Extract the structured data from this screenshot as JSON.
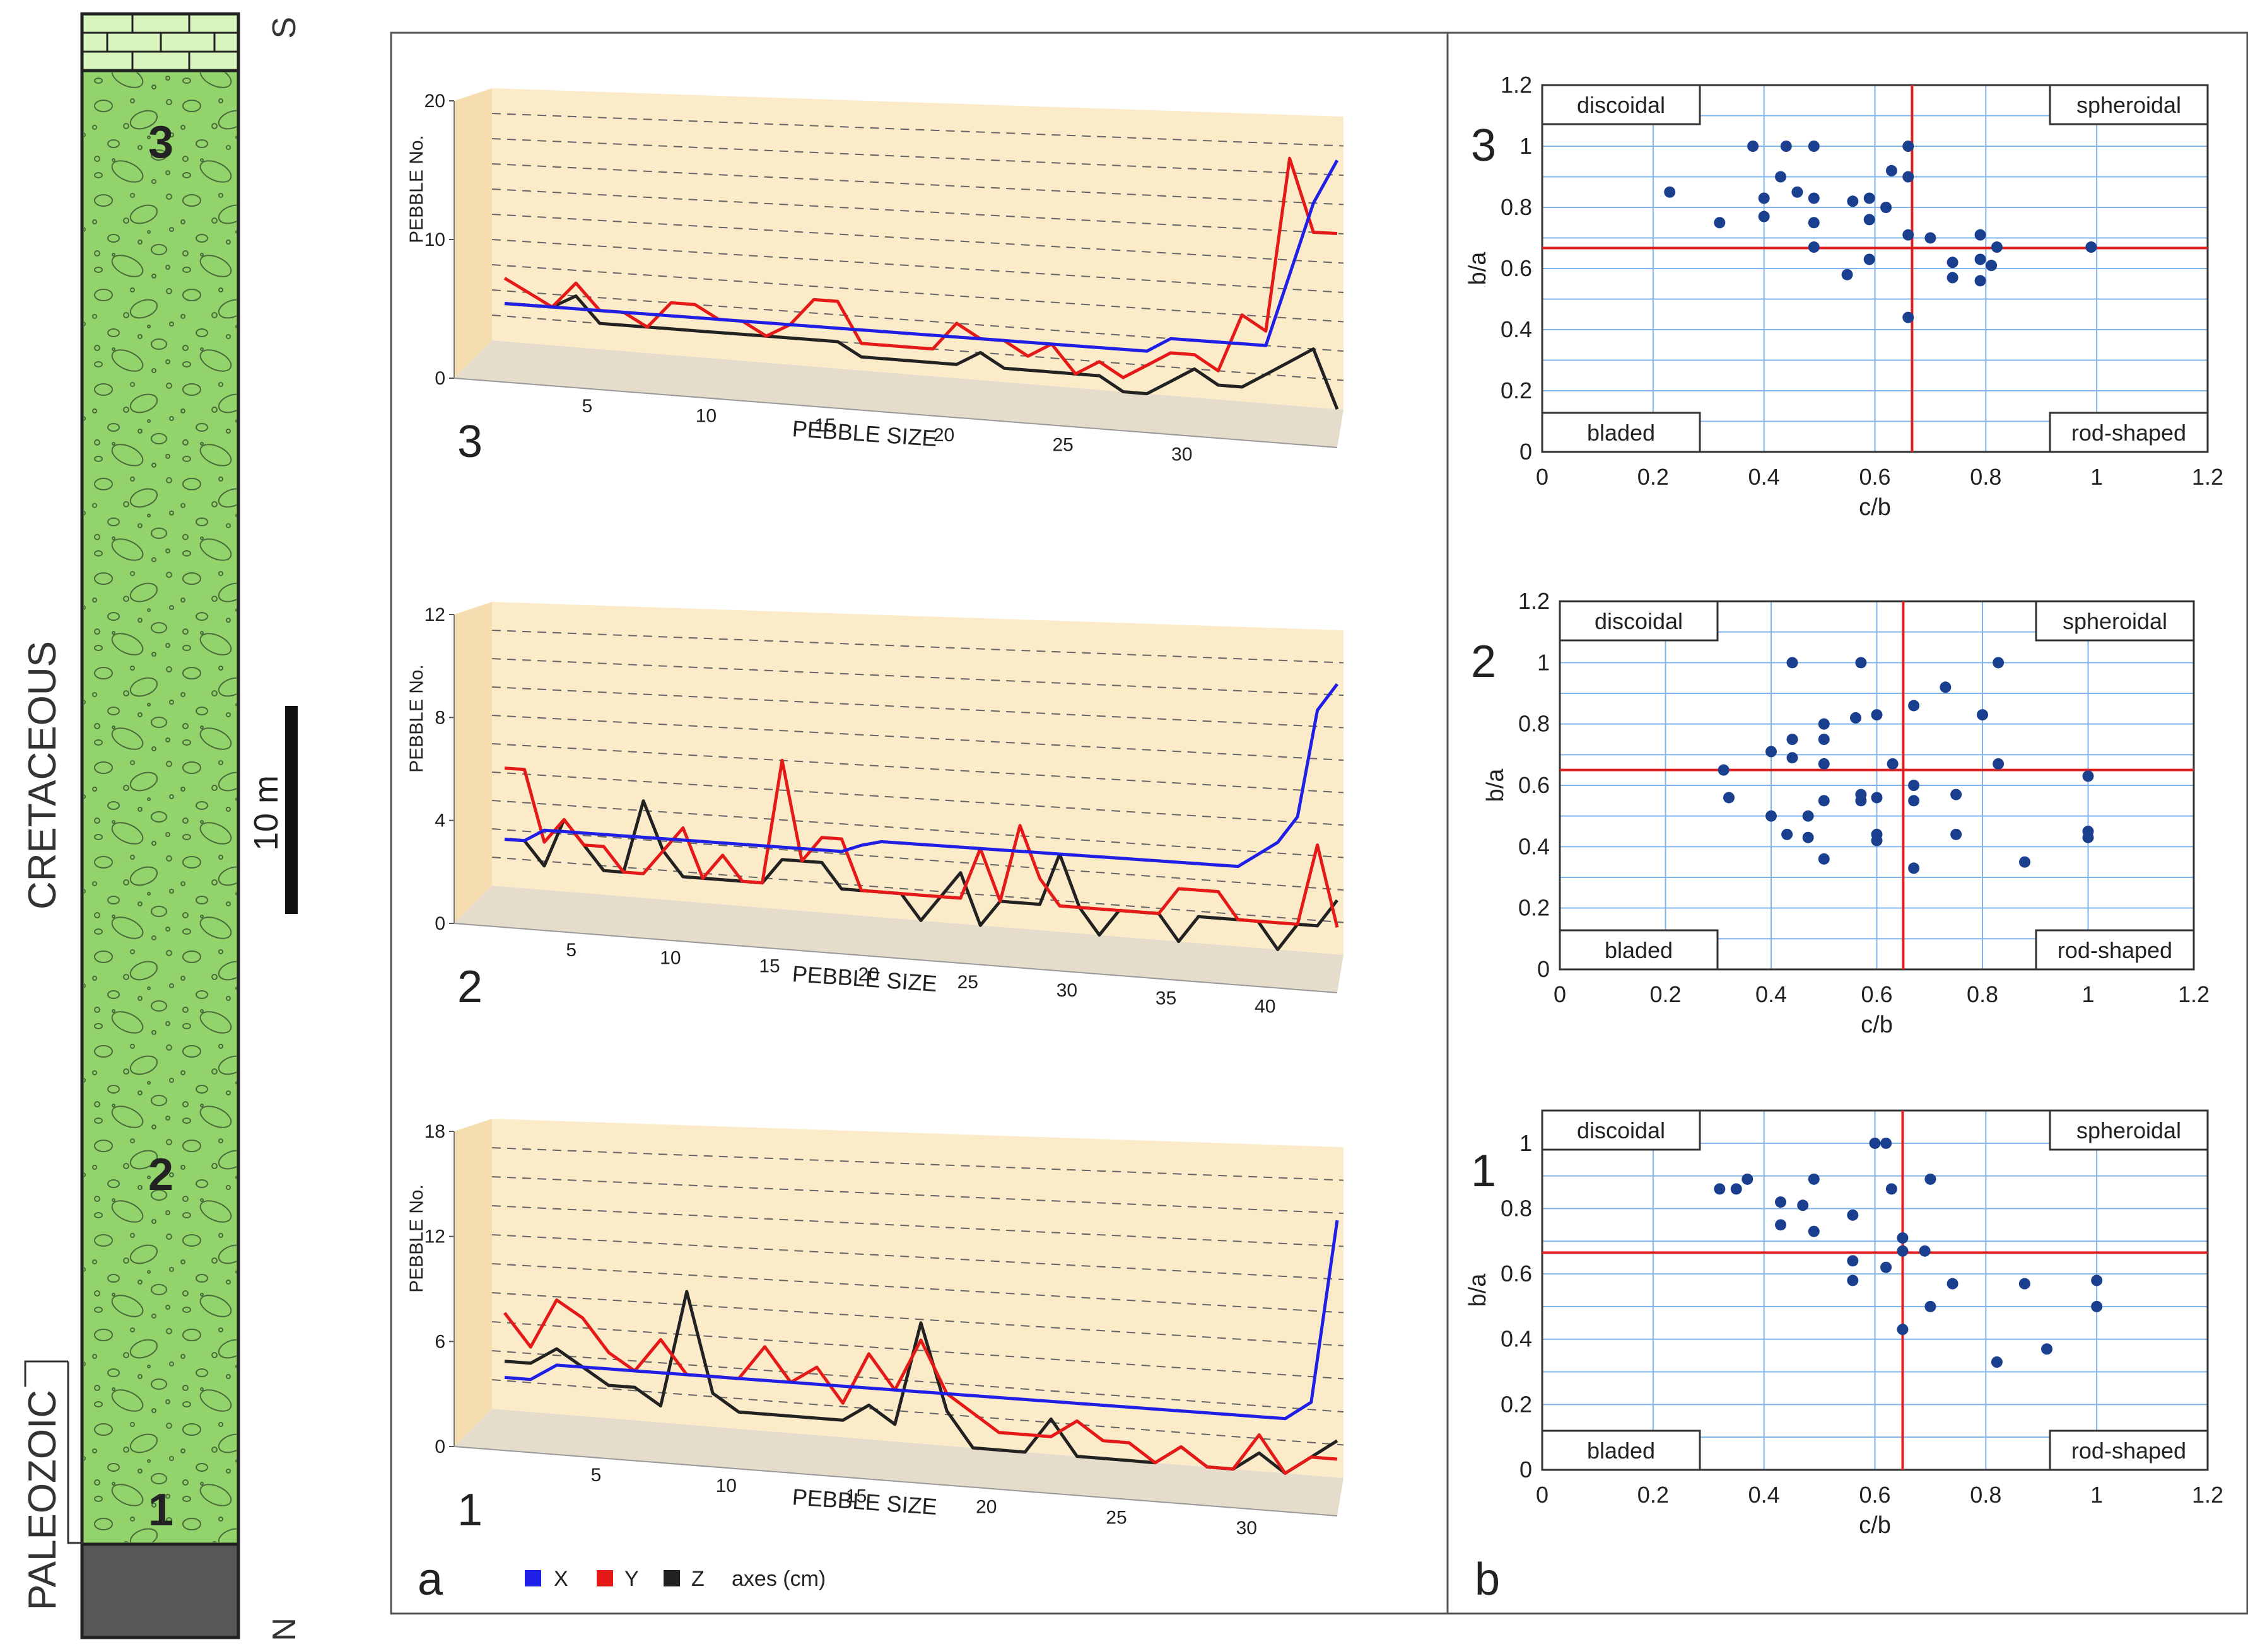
{
  "colors": {
    "x_axis": "#1f1fe6",
    "y_axis": "#e61919",
    "z_axis": "#222222",
    "column_green": "#93d36b",
    "cap_green": "#d8f5bd",
    "basement": "#575757",
    "panel_wall": "#fcebc9",
    "panel_floor": "#e6dccb",
    "scatter_dot": "#1b3f8f",
    "scatter_grid": "#7fb4ea",
    "scatter_cross": "#e02020"
  },
  "column": {
    "period": "CRETACEOUS",
    "basement": "PALEOZOIC",
    "north": "N",
    "south": "S",
    "scale_label": "10 m",
    "units": [
      "1",
      "2",
      "3"
    ]
  },
  "panel_a": {
    "label": "a",
    "legend": {
      "x": "X",
      "y": "Y",
      "z": "Z",
      "units": "axes (cm)"
    }
  },
  "panel_b": {
    "label": "b"
  },
  "chart_data": [
    {
      "id": "line-3",
      "type": "line",
      "number": "3",
      "xlabel": "PEBBLE SIZE",
      "ylabel": "PEBBLE No.",
      "ylim": [
        0,
        20
      ],
      "yticks": [
        0,
        10,
        20
      ],
      "xticks": [
        5,
        10,
        15,
        20,
        25,
        30
      ],
      "series": [
        {
          "name": "X",
          "values": [
            3,
            3,
            3,
            3,
            3,
            3,
            3,
            3,
            3,
            3,
            3,
            3,
            3,
            3,
            3,
            3,
            3,
            3,
            3,
            3,
            3,
            3,
            3,
            3,
            3,
            3,
            3,
            3,
            4,
            4,
            4,
            4,
            4,
            9,
            14,
            17
          ]
        },
        {
          "name": "Y",
          "values": [
            5,
            4,
            3,
            5,
            3,
            3,
            2,
            4,
            4,
            3,
            3,
            2,
            3,
            5,
            5,
            2,
            2,
            2,
            2,
            4,
            3,
            3,
            2,
            3,
            1,
            2,
            1,
            2,
            3,
            3,
            2,
            6,
            5,
            17,
            12,
            12
          ]
        },
        {
          "name": "Z",
          "values": [
            3,
            3,
            3,
            4,
            2,
            2,
            2,
            2,
            2,
            2,
            2,
            2,
            2,
            2,
            2,
            1,
            1,
            1,
            1,
            1,
            2,
            1,
            1,
            1,
            1,
            1,
            0,
            0,
            1,
            2,
            1,
            1,
            2,
            3,
            4,
            0
          ]
        }
      ]
    },
    {
      "id": "line-2",
      "type": "line",
      "number": "2",
      "xlabel": "PEBBLE SIZE",
      "ylabel": "PEBBLE No.",
      "ylim": [
        0,
        12
      ],
      "yticks": [
        0,
        4,
        8,
        12
      ],
      "xticks": [
        5,
        10,
        15,
        20,
        25,
        30,
        35,
        40
      ],
      "series": [
        {
          "name": "X",
          "values": [
            2,
            2,
            2.5,
            2.5,
            2.5,
            2.5,
            2.5,
            2.5,
            2.5,
            2.5,
            2.5,
            2.5,
            2.5,
            2.5,
            2.5,
            2.5,
            2.5,
            2.5,
            2.8,
            3,
            3,
            3,
            3,
            3,
            3,
            3,
            3,
            3,
            3,
            3,
            3,
            3,
            3,
            3,
            3,
            3,
            3,
            3,
            3.5,
            4,
            5,
            9,
            10
          ]
        },
        {
          "name": "Y",
          "values": [
            5,
            5,
            2,
            3,
            2,
            2,
            1,
            1,
            2,
            3,
            1,
            2,
            1,
            1,
            6,
            2,
            3,
            3,
            1,
            1,
            1,
            1,
            1,
            1,
            3,
            1,
            4,
            2,
            1,
            1,
            1,
            1,
            1,
            1,
            2,
            2,
            2,
            1,
            1,
            1,
            1,
            4,
            1
          ]
        },
        {
          "name": "Z",
          "values": [
            2,
            2,
            1,
            3,
            2,
            1,
            1,
            4,
            2,
            1,
            1,
            1,
            1,
            1,
            2,
            2,
            2,
            1,
            1,
            1,
            1,
            0,
            1,
            2,
            0,
            1,
            1,
            1,
            3,
            1,
            0,
            1,
            1,
            1,
            0,
            1,
            1,
            1,
            1,
            0,
            1,
            1,
            2
          ]
        }
      ]
    },
    {
      "id": "line-1",
      "type": "line",
      "number": "1",
      "xlabel": "PEBBLE SIZE",
      "ylabel": "PEBBLE No.",
      "ylim": [
        0,
        18
      ],
      "yticks": [
        0,
        6,
        12,
        18
      ],
      "xticks": [
        5,
        10,
        15,
        20,
        25,
        30
      ],
      "series": [
        {
          "name": "X",
          "values": [
            2,
            2,
            3,
            3,
            3,
            3,
            3,
            3,
            3,
            3,
            3,
            3,
            3,
            3,
            3,
            3,
            3,
            3,
            3,
            3,
            3,
            3,
            3,
            3,
            3,
            3,
            3,
            3,
            3,
            3,
            3,
            4,
            14
          ]
        },
        {
          "name": "Y",
          "values": [
            6,
            4,
            7,
            6,
            4,
            3,
            5,
            3,
            3,
            3,
            5,
            3,
            4,
            2,
            5,
            3,
            6,
            3,
            2,
            1,
            1,
            1,
            2,
            1,
            1,
            0,
            1,
            0,
            0,
            2,
            0,
            1,
            1
          ]
        },
        {
          "name": "Z",
          "values": [
            3,
            3,
            4,
            3,
            2,
            2,
            1,
            8,
            2,
            1,
            1,
            1,
            1,
            1,
            2,
            1,
            7,
            2,
            0,
            0,
            0,
            2,
            0,
            0,
            0,
            0,
            1,
            0,
            0,
            1,
            0,
            1,
            2
          ]
        }
      ]
    },
    {
      "id": "shape-3",
      "type": "scatter",
      "number": "3",
      "xlabel": "c/b",
      "ylabel": "b/a",
      "xlim": [
        0,
        1.2
      ],
      "ylim": [
        0,
        1.2
      ],
      "xticks": [
        "0",
        "0.2",
        "0.4",
        "0.6",
        "0.8",
        "1",
        "1.2"
      ],
      "yticks": [
        "0",
        "0.2",
        "0.4",
        "0.6",
        "0.8",
        "1",
        "1.2"
      ],
      "cross": [
        0.667,
        0.667
      ],
      "fields": [
        "discoidal",
        "spheroidal",
        "bladed",
        "rod-shaped"
      ],
      "points": [
        [
          0.23,
          0.85
        ],
        [
          0.32,
          0.75
        ],
        [
          0.38,
          1.0
        ],
        [
          0.4,
          0.83
        ],
        [
          0.4,
          0.77
        ],
        [
          0.43,
          0.9
        ],
        [
          0.44,
          1.0
        ],
        [
          0.46,
          0.85
        ],
        [
          0.49,
          1.0
        ],
        [
          0.49,
          0.83
        ],
        [
          0.49,
          0.75
        ],
        [
          0.49,
          0.67
        ],
        [
          0.55,
          0.58
        ],
        [
          0.56,
          0.82
        ],
        [
          0.59,
          0.76
        ],
        [
          0.59,
          0.83
        ],
        [
          0.59,
          0.63
        ],
        [
          0.62,
          0.8
        ],
        [
          0.63,
          0.92
        ],
        [
          0.66,
          1.0
        ],
        [
          0.66,
          0.9
        ],
        [
          0.66,
          0.71
        ],
        [
          0.66,
          0.44
        ],
        [
          0.7,
          0.7
        ],
        [
          0.74,
          0.62
        ],
        [
          0.74,
          0.57
        ],
        [
          0.79,
          0.71
        ],
        [
          0.79,
          0.63
        ],
        [
          0.79,
          0.56
        ],
        [
          0.81,
          0.61
        ],
        [
          0.82,
          0.67
        ],
        [
          0.99,
          0.67
        ]
      ]
    },
    {
      "id": "shape-2",
      "type": "scatter",
      "number": "2",
      "xlabel": "c/b",
      "ylabel": "b/a",
      "xlim": [
        0,
        1.2
      ],
      "ylim": [
        0,
        1.2
      ],
      "xticks": [
        "0",
        "0.2",
        "0.4",
        "0.6",
        "0.8",
        "1",
        "1.2"
      ],
      "yticks": [
        "0",
        "0.2",
        "0.4",
        "0.6",
        "0.8",
        "1",
        "1.2"
      ],
      "cross": [
        0.65,
        0.65
      ],
      "fields": [
        "discoidal",
        "spheroidal",
        "bladed",
        "rod-shaped"
      ],
      "points": [
        [
          0.31,
          0.65
        ],
        [
          0.32,
          0.56
        ],
        [
          0.4,
          0.71
        ],
        [
          0.4,
          0.5
        ],
        [
          0.43,
          0.44
        ],
        [
          0.44,
          1.0
        ],
        [
          0.44,
          0.75
        ],
        [
          0.44,
          0.69
        ],
        [
          0.47,
          0.5
        ],
        [
          0.47,
          0.43
        ],
        [
          0.5,
          0.8
        ],
        [
          0.5,
          0.75
        ],
        [
          0.5,
          0.67
        ],
        [
          0.5,
          0.55
        ],
        [
          0.5,
          0.36
        ],
        [
          0.56,
          0.82
        ],
        [
          0.57,
          1.0
        ],
        [
          0.57,
          0.57
        ],
        [
          0.57,
          0.55
        ],
        [
          0.6,
          0.83
        ],
        [
          0.6,
          0.56
        ],
        [
          0.6,
          0.44
        ],
        [
          0.6,
          0.42
        ],
        [
          0.63,
          0.67
        ],
        [
          0.67,
          0.86
        ],
        [
          0.67,
          0.6
        ],
        [
          0.67,
          0.55
        ],
        [
          0.67,
          0.33
        ],
        [
          0.73,
          0.92
        ],
        [
          0.75,
          0.57
        ],
        [
          0.75,
          0.44
        ],
        [
          0.8,
          0.83
        ],
        [
          0.83,
          1.0
        ],
        [
          0.83,
          0.67
        ],
        [
          0.88,
          0.35
        ],
        [
          1.0,
          0.63
        ],
        [
          1.0,
          0.45
        ],
        [
          1.0,
          0.43
        ]
      ]
    },
    {
      "id": "shape-1",
      "type": "scatter",
      "number": "1",
      "xlabel": "c/b",
      "ylabel": "b/a",
      "xlim": [
        0,
        1.2
      ],
      "ylim": [
        0,
        1.1
      ],
      "xticks": [
        "0",
        "0.2",
        "0.4",
        "0.6",
        "0.8",
        "1",
        "1.2"
      ],
      "yticks": [
        "0",
        "0.2",
        "0.4",
        "0.6",
        "0.8",
        "1"
      ],
      "cross": [
        0.65,
        0.665
      ],
      "fields": [
        "discoidal",
        "spheroidal",
        "bladed",
        "rod-shaped"
      ],
      "points": [
        [
          0.32,
          0.86
        ],
        [
          0.35,
          0.86
        ],
        [
          0.37,
          0.89
        ],
        [
          0.43,
          0.82
        ],
        [
          0.43,
          0.75
        ],
        [
          0.47,
          0.81
        ],
        [
          0.49,
          0.89
        ],
        [
          0.49,
          0.73
        ],
        [
          0.56,
          0.78
        ],
        [
          0.56,
          0.64
        ],
        [
          0.56,
          0.58
        ],
        [
          0.6,
          1.0
        ],
        [
          0.62,
          1.0
        ],
        [
          0.62,
          0.62
        ],
        [
          0.63,
          0.86
        ],
        [
          0.65,
          0.71
        ],
        [
          0.65,
          0.67
        ],
        [
          0.65,
          0.43
        ],
        [
          0.69,
          0.67
        ],
        [
          0.7,
          0.89
        ],
        [
          0.7,
          0.5
        ],
        [
          0.74,
          0.57
        ],
        [
          0.82,
          0.33
        ],
        [
          0.87,
          0.57
        ],
        [
          0.91,
          0.37
        ],
        [
          1.0,
          0.58
        ],
        [
          1.0,
          0.5
        ]
      ]
    }
  ]
}
